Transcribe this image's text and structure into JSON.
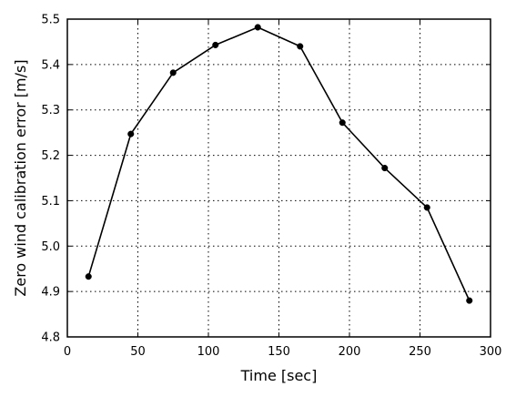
{
  "chart_data": {
    "type": "line",
    "xlabel": "Time [sec]",
    "ylabel": "Zero wind calibration error [m/s]",
    "xlim": [
      0,
      300
    ],
    "ylim": [
      4.8,
      5.5
    ],
    "x_ticks": [
      0,
      50,
      100,
      150,
      200,
      250,
      300
    ],
    "y_ticks": [
      4.8,
      4.9,
      5.0,
      5.1,
      5.2,
      5.3,
      5.4,
      5.5
    ],
    "x_tick_labels": [
      "0",
      "50",
      "100",
      "150",
      "200",
      "250",
      "300"
    ],
    "y_tick_labels": [
      "4.8",
      "4.9",
      "5.0",
      "5.1",
      "5.2",
      "5.3",
      "5.4",
      "5.5"
    ],
    "grid": true,
    "series": [
      {
        "x": [
          15,
          45,
          75,
          105,
          135,
          165,
          195,
          225,
          255,
          285
        ],
        "values": [
          4.933,
          5.247,
          5.382,
          5.443,
          5.482,
          5.44,
          5.272,
          5.172,
          5.085,
          4.88
        ],
        "color": "#000000",
        "marker": "circle"
      }
    ]
  }
}
